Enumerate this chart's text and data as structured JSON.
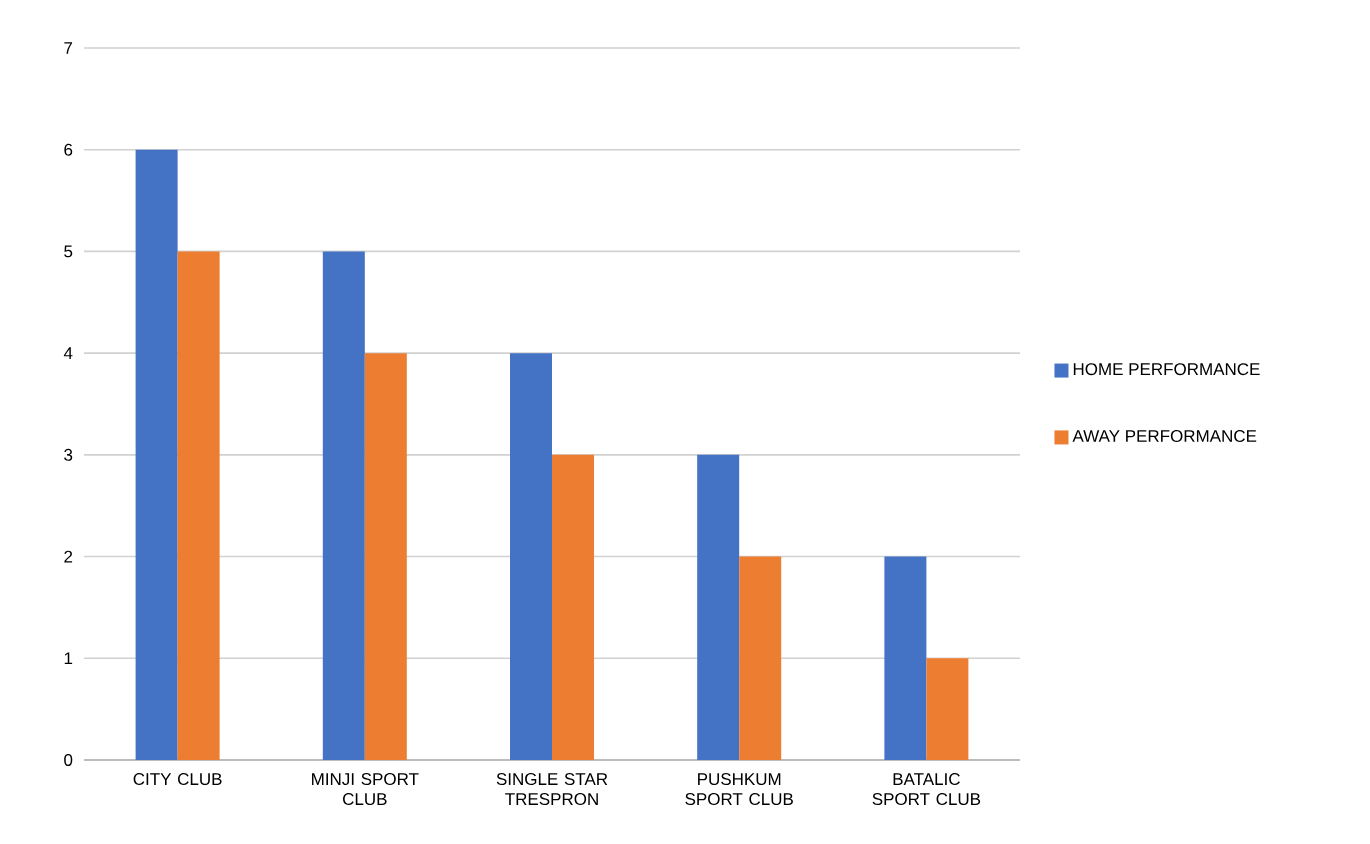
{
  "chart_data": {
    "type": "bar",
    "categories": [
      "CITY CLUB",
      "MINJI SPORT CLUB",
      "SINGLE STAR TRESPRON",
      "PUSHKUM SPORT CLUB",
      "BATALIC SPORT CLUB"
    ],
    "series": [
      {
        "name": "HOME PERFORMANCE",
        "color": "#4472c4",
        "values": [
          6,
          5,
          4,
          3,
          2
        ]
      },
      {
        "name": "AWAY PERFORMANCE",
        "color": "#ed7d31",
        "values": [
          5,
          4,
          3,
          2,
          1
        ]
      }
    ],
    "ylim": [
      0,
      7
    ],
    "yticks": [
      0,
      1,
      2,
      3,
      4,
      5,
      6,
      7
    ],
    "grid": "y",
    "legend": "right"
  }
}
